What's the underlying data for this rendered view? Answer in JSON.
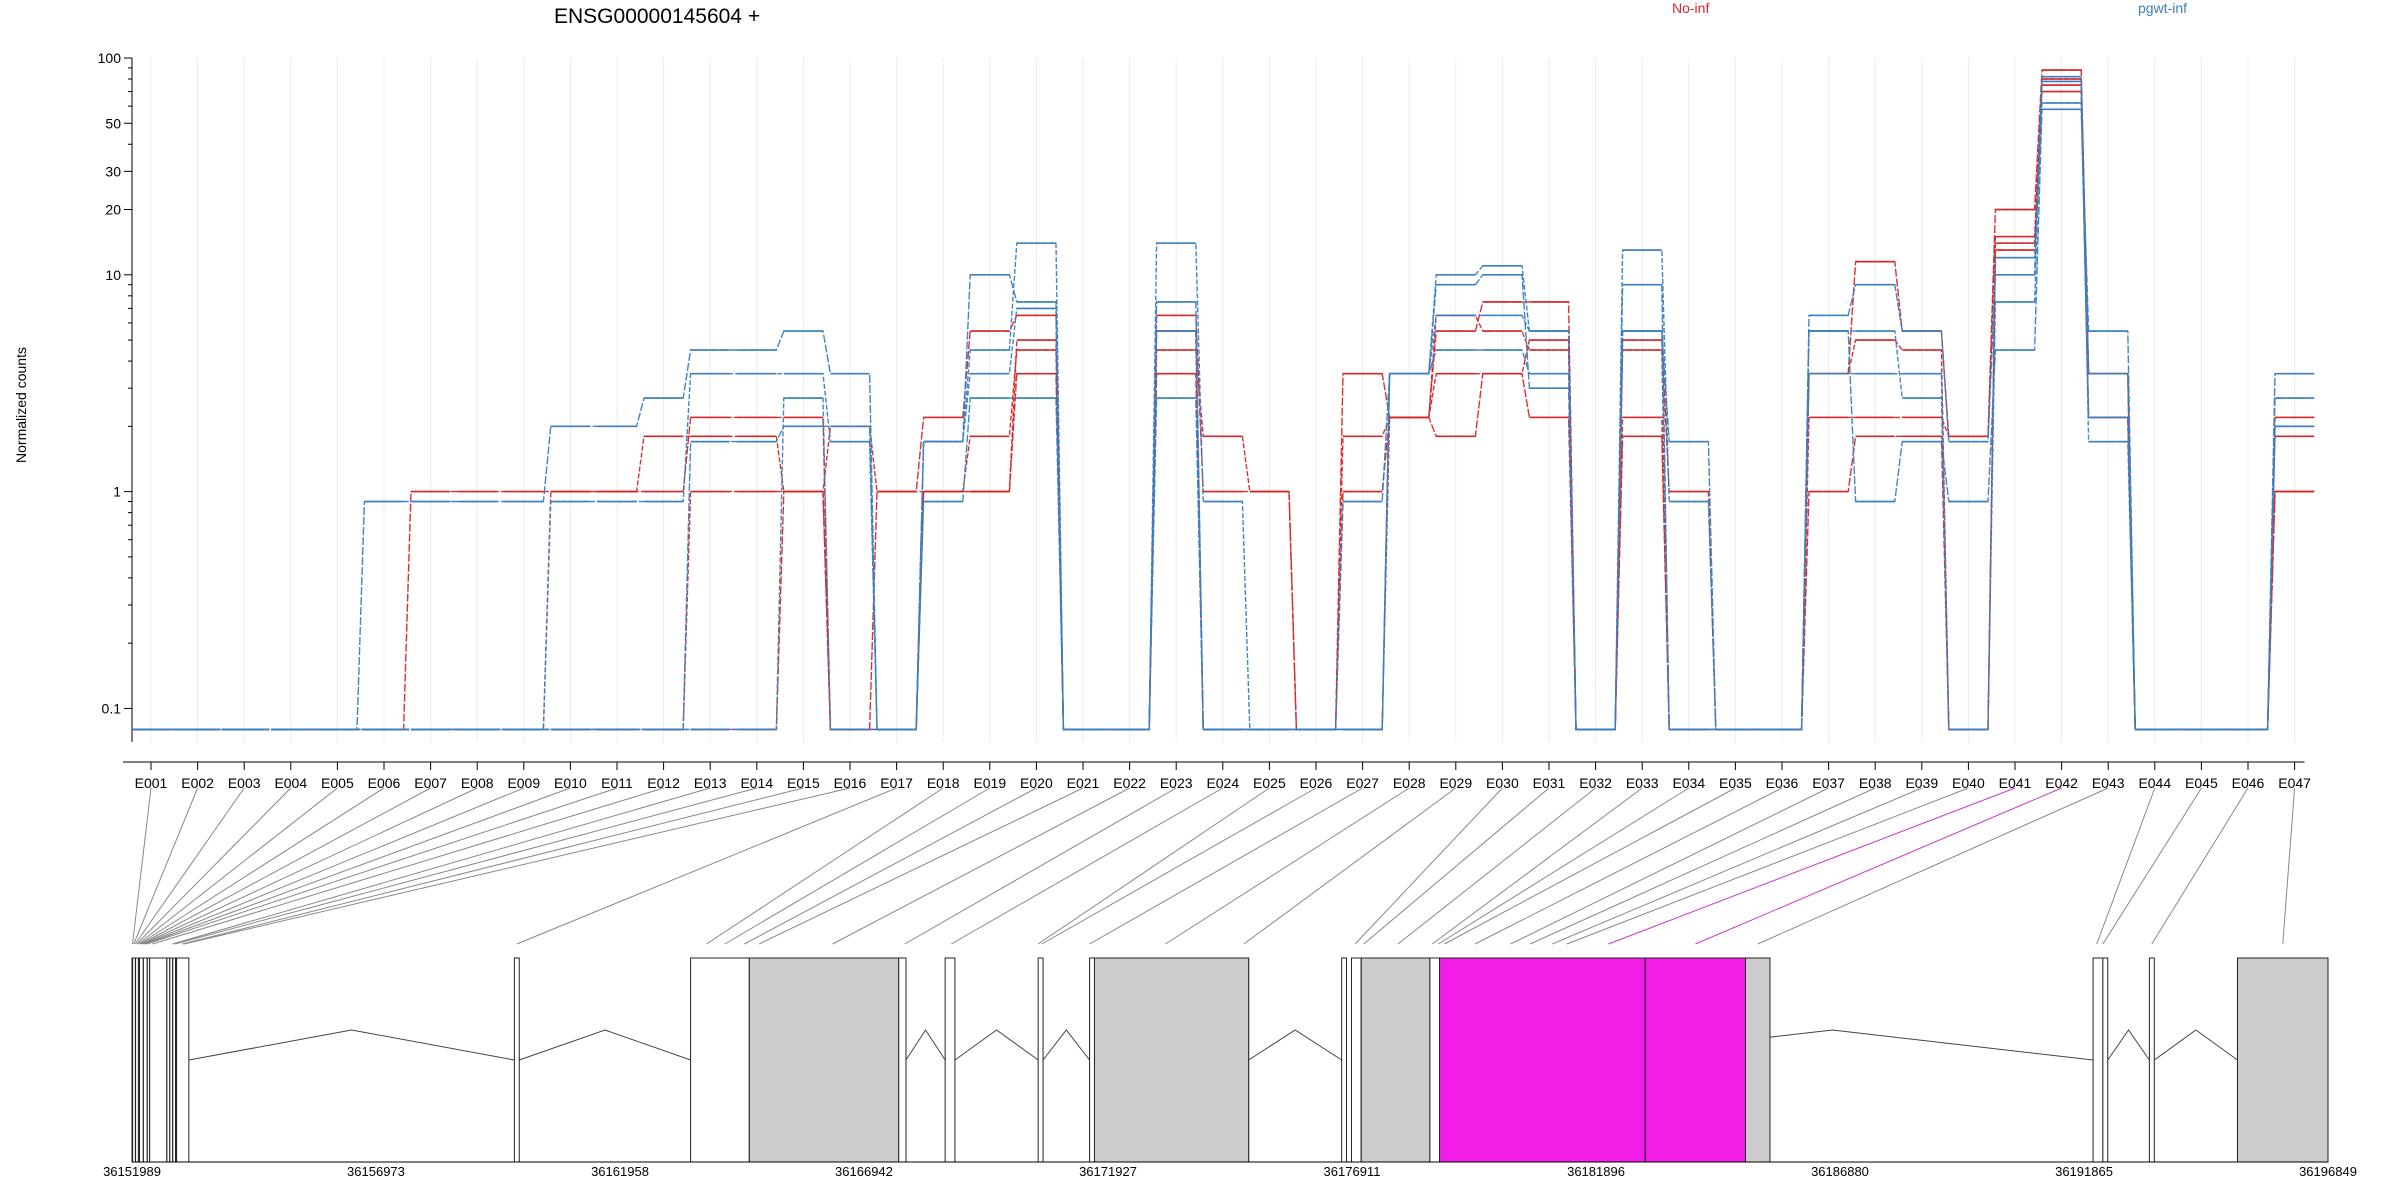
{
  "chart_data": {
    "type": "line",
    "title": "ENSG00000145604 +",
    "ylabel": "Normalized counts",
    "xlabel": "",
    "yscale": "log",
    "ylim": [
      0.07,
      100
    ],
    "yticks": [
      0.1,
      1,
      10,
      20,
      30,
      50,
      100
    ],
    "ytick_labels": [
      "0.1",
      "1",
      "10",
      "20",
      "30",
      "50",
      "100"
    ],
    "grid": "vertical",
    "legend_placement": "top-right",
    "legend": [
      {
        "label": "No-inf",
        "color": "#d62728"
      },
      {
        "label": "pgwt-inf",
        "color": "#3a7fc1"
      }
    ],
    "categories": [
      "E001",
      "E002",
      "E003",
      "E004",
      "E005",
      "E006",
      "E007",
      "E008",
      "E009",
      "E010",
      "E011",
      "E012",
      "E013",
      "E014",
      "E015",
      "E016",
      "E017",
      "E018",
      "E019",
      "E020",
      "E021",
      "E022",
      "E023",
      "E024",
      "E025",
      "E026",
      "E027",
      "E028",
      "E029",
      "E030",
      "E031",
      "E032",
      "E033",
      "E034",
      "E035",
      "E036",
      "E037",
      "E038",
      "E039",
      "E040",
      "E041",
      "E042",
      "E043",
      "E044",
      "E045",
      "E046",
      "E047"
    ],
    "series": [
      {
        "group": "No-inf",
        "color": "#d62728",
        "values": [
          0.08,
          0.08,
          0.08,
          0.08,
          0.08,
          0.08,
          1,
          1,
          1,
          1,
          1,
          1,
          2.2,
          2.2,
          2.2,
          0.08,
          1,
          2.2,
          5.5,
          6.5,
          0.08,
          0.08,
          6.5,
          1,
          1,
          0.08,
          3.5,
          2.2,
          5.5,
          7.5,
          7.5,
          0.08,
          5,
          1,
          0.08,
          0.08,
          3.5,
          11.5,
          5.5,
          1.8,
          20,
          88,
          3.5,
          0.08,
          0.08,
          0.08,
          2.2
        ]
      },
      {
        "group": "No-inf",
        "color": "#d62728",
        "values": [
          0.08,
          0.08,
          0.08,
          0.08,
          0.08,
          0.08,
          0.08,
          0.08,
          0.08,
          1,
          1,
          1.8,
          1.8,
          1.8,
          1,
          2,
          1,
          1,
          1.8,
          4.5,
          0.08,
          0.08,
          4.5,
          1.8,
          1,
          0.08,
          1.8,
          2.2,
          3.5,
          3.5,
          5,
          0.08,
          2.2,
          0.08,
          0.08,
          0.08,
          2.2,
          2.2,
          2.2,
          1.8,
          15,
          80,
          3.5,
          0.08,
          0.08,
          0.08,
          1.8
        ]
      },
      {
        "group": "No-inf",
        "color": "#d62728",
        "values": [
          0.08,
          0.08,
          0.08,
          0.08,
          0.08,
          0.08,
          0.08,
          0.08,
          0.08,
          0.08,
          0.08,
          0.08,
          0.08,
          0.08,
          1,
          0.08,
          0.08,
          1,
          1,
          3.5,
          0.08,
          0.08,
          3.5,
          0.08,
          0.08,
          0.08,
          1,
          2.2,
          1.8,
          3.5,
          2.2,
          0.08,
          1.8,
          0.08,
          0.08,
          0.08,
          1,
          1.8,
          1.8,
          0.08,
          13,
          70,
          2.2,
          0.08,
          0.08,
          0.08,
          1
        ]
      },
      {
        "group": "No-inf",
        "color": "#d62728",
        "values": [
          0.08,
          0.08,
          0.08,
          0.08,
          0.08,
          0.08,
          0.08,
          0.08,
          0.08,
          0.08,
          0.08,
          0.08,
          1,
          1,
          1,
          0.08,
          0.08,
          1,
          1,
          5,
          0.08,
          0.08,
          5.5,
          0.08,
          0.08,
          0.08,
          0.08,
          2.2,
          6.5,
          5.5,
          4.5,
          0.08,
          4.5,
          0.08,
          0.08,
          0.08,
          3.5,
          5,
          4.5,
          0.08,
          14,
          75,
          2.2,
          0.08,
          0.08,
          0.08,
          1
        ]
      },
      {
        "group": "pgwt-inf",
        "color": "#3a7fc1",
        "values": [
          0.08,
          0.08,
          0.08,
          0.08,
          0.08,
          0.9,
          0.9,
          0.9,
          0.9,
          2,
          2,
          2.7,
          4.5,
          4.5,
          5.5,
          3.5,
          0.08,
          0.9,
          2.7,
          2.7,
          0.08,
          0.08,
          2.7,
          0.08,
          0.08,
          0.08,
          0.9,
          3.5,
          4.5,
          4.5,
          3.5,
          0.08,
          5.5,
          1.7,
          0.08,
          0.08,
          5.5,
          0.9,
          1.7,
          0.9,
          4.5,
          58,
          5.5,
          0.08,
          0.08,
          0.08,
          3.5
        ]
      },
      {
        "group": "pgwt-inf",
        "color": "#3a7fc1",
        "values": [
          0.08,
          0.08,
          0.08,
          0.08,
          0.08,
          0.08,
          0.08,
          0.08,
          0.08,
          0.9,
          0.9,
          0.9,
          3.5,
          3.5,
          3.5,
          1.7,
          0.08,
          1.7,
          4.5,
          14,
          0.08,
          0.08,
          14,
          0.9,
          0.08,
          0.08,
          0.08,
          3.5,
          10,
          11,
          5.5,
          0.08,
          13,
          0.9,
          0.08,
          0.08,
          3.5,
          3.5,
          3.5,
          0.08,
          7.5,
          82,
          1.7,
          0.08,
          0.08,
          0.08,
          2
        ]
      },
      {
        "group": "pgwt-inf",
        "color": "#3a7fc1",
        "values": [
          0.08,
          0.08,
          0.08,
          0.08,
          0.08,
          0.08,
          0.08,
          0.08,
          0.08,
          0.08,
          0.08,
          0.08,
          1.7,
          1.7,
          2,
          2,
          0.08,
          1.7,
          10,
          7.5,
          0.08,
          0.08,
          7.5,
          0.08,
          0.08,
          0.08,
          0.08,
          3.5,
          9,
          10,
          3,
          0.08,
          9,
          0.08,
          0.08,
          0.08,
          6.5,
          9,
          5.5,
          1.7,
          10,
          78,
          3.5,
          0.08,
          0.08,
          0.08,
          2.7
        ]
      },
      {
        "group": "pgwt-inf",
        "color": "#3a7fc1",
        "values": [
          0.08,
          0.08,
          0.08,
          0.08,
          0.08,
          0.08,
          0.08,
          0.08,
          0.08,
          0.08,
          0.08,
          0.08,
          0.08,
          0.08,
          2.7,
          0.08,
          0.08,
          1.7,
          3.5,
          7,
          0.08,
          0.08,
          5.5,
          0.08,
          0.08,
          0.08,
          0.08,
          3.5,
          6.5,
          6.5,
          5.5,
          0.08,
          5.5,
          0.08,
          0.08,
          0.08,
          5.5,
          5.5,
          2.7,
          0.08,
          12,
          62,
          2.2,
          0.08,
          0.08,
          0.08,
          2
        ]
      }
    ],
    "gene_model": {
      "coordinate_range": [
        36151989,
        36196849
      ],
      "ticks": [
        36151989,
        36156973,
        36161958,
        36166942,
        36171927,
        36176911,
        36181896,
        36186880,
        36191865,
        36196849
      ],
      "tick_labels": [
        "36151989",
        "36156973",
        "36161958",
        "36166942",
        "36171927",
        "36176911",
        "36181896",
        "36186880",
        "36191865",
        "36196849"
      ],
      "highlight_exons": [
        "E041",
        "E042"
      ],
      "highlight_color": "#f21ee8",
      "exon_color": "#cccccc",
      "exons": [
        {
          "id": "E001",
          "start": 36151989,
          "end": 36152010
        },
        {
          "id": "E002",
          "start": 36152010,
          "end": 36152040
        },
        {
          "id": "E003",
          "start": 36152040,
          "end": 36152070
        },
        {
          "id": "E004",
          "start": 36152070,
          "end": 36152100
        },
        {
          "id": "E005",
          "start": 36152100,
          "end": 36152130
        },
        {
          "id": "E006",
          "start": 36152130,
          "end": 36152160
        },
        {
          "id": "E007",
          "start": 36152160,
          "end": 36152190
        },
        {
          "id": "E008",
          "start": 36152190,
          "end": 36152220
        },
        {
          "id": "E009",
          "start": 36152220,
          "end": 36152250
        },
        {
          "id": "E010",
          "start": 36152250,
          "end": 36152280
        },
        {
          "id": "E011",
          "start": 36152280,
          "end": 36152310
        },
        {
          "id": "E012",
          "start": 36152310,
          "end": 36152500
        },
        {
          "id": "E013",
          "start": 36152800,
          "end": 36152830
        },
        {
          "id": "E014",
          "start": 36152830,
          "end": 36152900
        },
        {
          "id": "E015",
          "start": 36153000,
          "end": 36153030
        },
        {
          "id": "E016",
          "start": 36153030,
          "end": 36153080
        },
        {
          "id": "E017",
          "start": 36159800,
          "end": 36159900
        },
        {
          "id": "E018",
          "start": 36163550,
          "end": 36163900
        },
        {
          "id": "E019",
          "start": 36163900,
          "end": 36164300
        },
        {
          "id": "E020",
          "start": 36164300,
          "end": 36164700
        },
        {
          "id": "E021",
          "start": 36164700,
          "end": 36164900
        },
        {
          "id": "E022",
          "start": 36164900,
          "end": 36167700
        },
        {
          "id": "E023",
          "start": 36167700,
          "end": 36167850
        },
        {
          "id": "E024",
          "start": 36168650,
          "end": 36168800
        },
        {
          "id": "E025",
          "start": 36170450,
          "end": 36170550
        },
        {
          "id": "E026",
          "start": 36170550,
          "end": 36170600
        },
        {
          "id": "E027",
          "start": 36171500,
          "end": 36171600
        },
        {
          "id": "E028",
          "start": 36171600,
          "end": 36174600
        },
        {
          "id": "E029",
          "start": 36174600,
          "end": 36174800
        },
        {
          "id": "E030",
          "start": 36176950,
          "end": 36177000
        },
        {
          "id": "E031",
          "start": 36177100,
          "end": 36177200
        },
        {
          "id": "E032",
          "start": 36177200,
          "end": 36178500
        },
        {
          "id": "E033",
          "start": 36178500,
          "end": 36178600
        },
        {
          "id": "E034",
          "start": 36178600,
          "end": 36178750
        },
        {
          "id": "E035",
          "start": 36178750,
          "end": 36178850
        },
        {
          "id": "E036",
          "start": 36178850,
          "end": 36180000
        },
        {
          "id": "E037",
          "start": 36180000,
          "end": 36180300
        },
        {
          "id": "E038",
          "start": 36180300,
          "end": 36180800
        },
        {
          "id": "E039",
          "start": 36180800,
          "end": 36181200
        },
        {
          "id": "E040",
          "start": 36181200,
          "end": 36181400
        },
        {
          "id": "E041",
          "start": 36181400,
          "end": 36182900
        },
        {
          "id": "E042",
          "start": 36182900,
          "end": 36184950
        },
        {
          "id": "E043",
          "start": 36184950,
          "end": 36185450
        },
        {
          "id": "E044",
          "start": 36192050,
          "end": 36192200
        },
        {
          "id": "E045",
          "start": 36192200,
          "end": 36192300
        },
        {
          "id": "E046",
          "start": 36193200,
          "end": 36193300
        },
        {
          "id": "E047",
          "start": 36195000,
          "end": 36196849
        }
      ],
      "white_blocks": [
        [
          36151989,
          36152120
        ],
        [
          36152120,
          36152350
        ],
        [
          36152350,
          36152900
        ],
        [
          36152900,
          36153150
        ],
        [
          36159800,
          36159900
        ],
        [
          36163400,
          36164600
        ],
        [
          36164600,
          36164900
        ],
        [
          36164900,
          36167650
        ],
        [
          36167650,
          36167800
        ],
        [
          36168600,
          36168800
        ],
        [
          36170500,
          36170600
        ],
        [
          36171550,
          36171700
        ],
        [
          36171700,
          36174800
        ],
        [
          36176700,
          36176800
        ],
        [
          36176900,
          36177100
        ],
        [
          36177100,
          36178500
        ],
        [
          36178500,
          36178700
        ],
        [
          36178700,
          36181400
        ],
        [
          36192050,
          36192250
        ],
        [
          36192250,
          36192350
        ],
        [
          36193200,
          36193300
        ],
        [
          36195000,
          36196849
        ]
      ],
      "gray_blocks": [
        [
          36164600,
          36167650
        ],
        [
          36171650,
          36174800
        ],
        [
          36177100,
          36178500
        ],
        [
          36184950,
          36185450
        ],
        [
          36195000,
          36196849
        ]
      ],
      "magenta_blocks": [
        [
          36178700,
          36182900
        ],
        [
          36182900,
          36184950
        ]
      ]
    }
  }
}
